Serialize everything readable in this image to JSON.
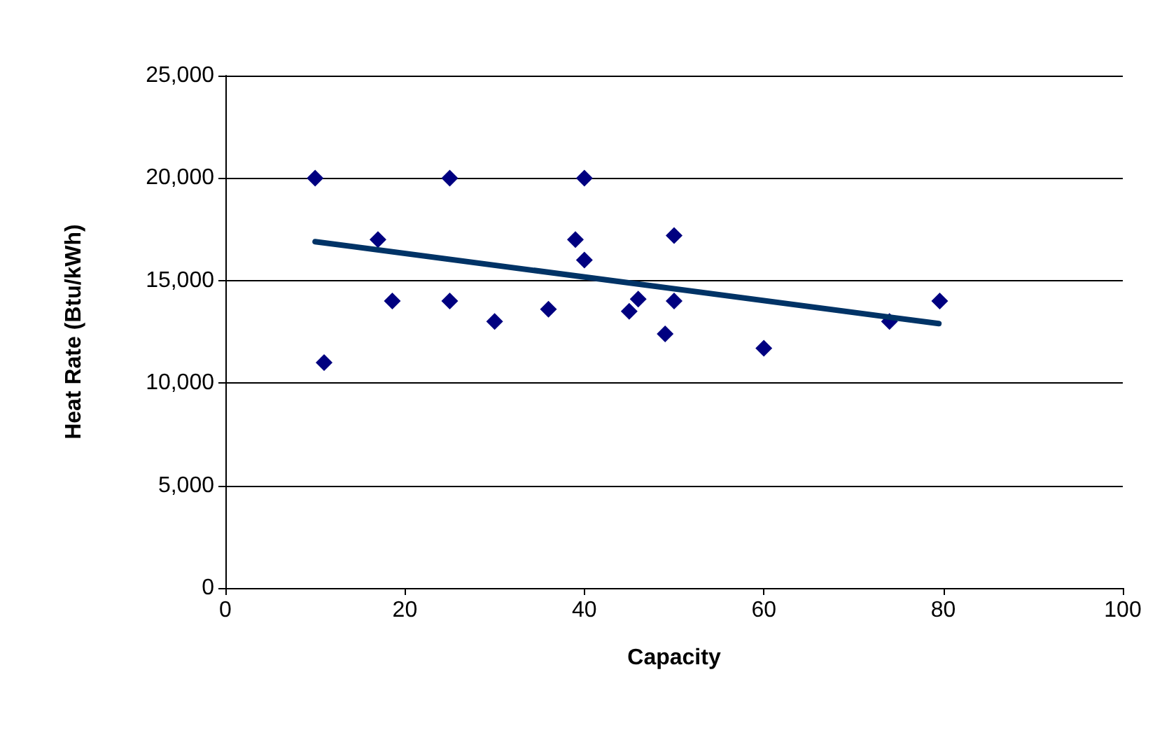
{
  "chart_data": {
    "type": "scatter",
    "xlabel": "Capacity",
    "ylabel": "Heat Rate (Btu/kWh)",
    "xlim": [
      0,
      100
    ],
    "xticks": [
      0,
      20,
      40,
      60,
      80,
      100
    ],
    "ylim": [
      0,
      25000
    ],
    "yticks": [
      {
        "value": 0,
        "label": "0"
      },
      {
        "value": 5000,
        "label": "5,000"
      },
      {
        "value": 10000,
        "label": "10,000"
      },
      {
        "value": 15000,
        "label": "15,000"
      },
      {
        "value": 20000,
        "label": "20,000"
      },
      {
        "value": 25000,
        "label": "25,000"
      }
    ],
    "grid": "y",
    "marker": "diamond",
    "series": [
      {
        "color": "#000080",
        "x": [
          10,
          11,
          17,
          18.6,
          25,
          25,
          30,
          36,
          39,
          40,
          40,
          45,
          46,
          49,
          50,
          50,
          60,
          74,
          79.6
        ],
        "values": [
          20000,
          11000,
          17000,
          14000,
          20000,
          14000,
          13000,
          13600,
          17000,
          20000,
          16000,
          13500,
          14100,
          12400,
          17200,
          14000,
          11700,
          13000,
          14000
        ]
      },
      {
        "type": "line",
        "color": "#003366",
        "marker": "none",
        "x": [
          10,
          79.5
        ],
        "values": [
          16900,
          12900
        ]
      }
    ]
  }
}
